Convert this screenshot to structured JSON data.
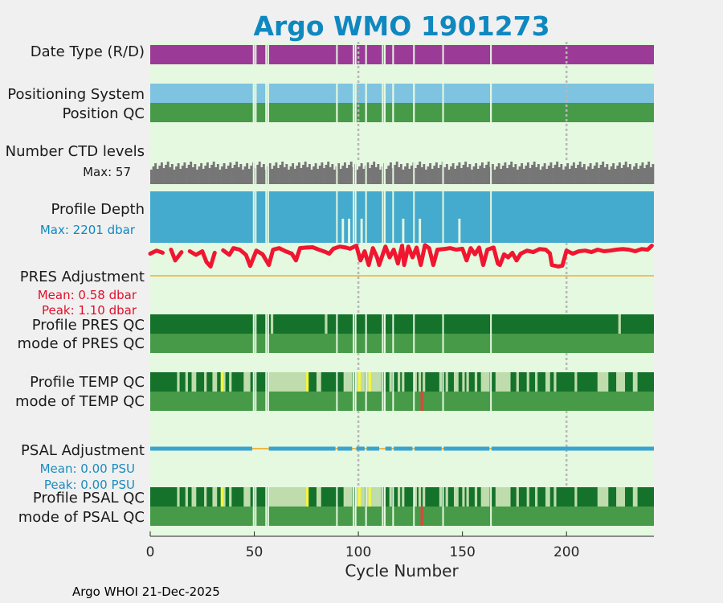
{
  "chart_data": {
    "type": "heatmap",
    "title": "Argo WMO 1901273",
    "xlabel": "Cycle Number",
    "xlim": [
      0,
      242
    ],
    "xticks": [
      0,
      50,
      100,
      150,
      200
    ],
    "footer": "Argo WHOI 21-Dec-2025",
    "rows": {
      "date_type": "Date Type (R/D)",
      "positioning_system": "Positioning System",
      "position_qc": "Position QC",
      "ctd_levels": "Number CTD levels",
      "ctd_levels_max": "Max: 57",
      "profile_depth": "Profile Depth",
      "profile_depth_max": "Max: 2201 dbar",
      "pres_adjustment": "PRES Adjustment",
      "pres_mean": "Mean: 0.58 dbar",
      "pres_peak": "Peak: 1.10 dbar",
      "profile_pres_qc": "Profile PRES QC",
      "mode_pres_qc": "mode of PRES QC",
      "profile_temp_qc": "Profile TEMP QC",
      "mode_temp_qc": "mode of TEMP QC",
      "psal_adjustment": "PSAL Adjustment",
      "psal_mean": "Mean: 0.00 PSU",
      "psal_peak": "Peak: 0.00 PSU",
      "profile_psal_qc": "Profile PSAL QC",
      "mode_psal_qc": "mode of PSAL QC"
    },
    "missing_cycles": [
      49,
      50,
      55,
      56,
      89,
      97,
      98,
      103,
      111,
      112,
      116,
      126,
      140,
      163
    ],
    "temp_light_cycles": [
      13,
      17,
      20,
      21,
      26,
      30,
      31,
      34,
      35,
      38,
      45,
      46,
      47,
      57,
      58,
      59,
      60,
      61,
      62,
      63,
      64,
      65,
      66,
      67,
      68,
      69,
      70,
      71,
      72,
      73,
      74,
      80,
      81,
      93,
      94,
      95,
      96,
      99,
      100,
      101,
      102,
      104,
      105,
      106,
      107,
      108,
      109,
      110,
      115,
      119,
      121,
      127,
      129,
      131,
      139,
      142,
      146,
      147,
      150,
      152,
      156,
      159,
      160,
      161,
      162,
      166,
      167,
      168,
      169,
      170,
      171,
      172,
      176,
      181,
      185,
      190,
      191,
      194,
      204,
      215,
      216,
      217,
      218,
      219,
      224,
      225,
      226,
      227,
      232,
      233
    ],
    "temp_yellow_cycles": [
      34,
      75,
      100,
      105
    ],
    "mode_temp_red_cycles": [
      130
    ],
    "psal_yellow_cycles": [
      34,
      75,
      100,
      105
    ],
    "psal_red_cycles": [
      130
    ],
    "pres_qc_light_cycles": [
      58,
      84,
      225
    ],
    "pres_adjustment_range": [
      0.0,
      1.1
    ],
    "pres_adjustment_samples": [
      {
        "cycle": 0,
        "value": 0.72
      },
      {
        "cycle": 3,
        "value": 0.82
      },
      {
        "cycle": 6,
        "value": 0.75
      },
      {
        "cycle": 10,
        "value": 0.85
      },
      {
        "cycle": 12,
        "value": 0.5
      },
      {
        "cycle": 15,
        "value": 0.77
      },
      {
        "cycle": 19,
        "value": 0.8
      },
      {
        "cycle": 22,
        "value": 0.68
      },
      {
        "cycle": 25,
        "value": 0.8
      },
      {
        "cycle": 27,
        "value": 0.45
      },
      {
        "cycle": 29,
        "value": 0.3
      },
      {
        "cycle": 31,
        "value": 0.75
      },
      {
        "cycle": 35,
        "value": 0.83
      },
      {
        "cycle": 38,
        "value": 0.68
      },
      {
        "cycle": 40,
        "value": 0.9
      },
      {
        "cycle": 43,
        "value": 0.85
      },
      {
        "cycle": 46,
        "value": 0.68
      },
      {
        "cycle": 48,
        "value": 0.32
      },
      {
        "cycle": 51,
        "value": 0.82
      },
      {
        "cycle": 54,
        "value": 0.7
      },
      {
        "cycle": 57,
        "value": 0.35
      },
      {
        "cycle": 59,
        "value": 0.85
      },
      {
        "cycle": 62,
        "value": 0.9
      },
      {
        "cycle": 65,
        "value": 0.8
      },
      {
        "cycle": 68,
        "value": 0.72
      },
      {
        "cycle": 70,
        "value": 0.5
      },
      {
        "cycle": 72,
        "value": 0.9
      },
      {
        "cycle": 75,
        "value": 0.92
      },
      {
        "cycle": 78,
        "value": 0.93
      },
      {
        "cycle": 81,
        "value": 0.85
      },
      {
        "cycle": 84,
        "value": 0.78
      },
      {
        "cycle": 86,
        "value": 0.72
      },
      {
        "cycle": 88,
        "value": 0.88
      },
      {
        "cycle": 91,
        "value": 0.95
      },
      {
        "cycle": 94,
        "value": 0.92
      },
      {
        "cycle": 96,
        "value": 0.88
      },
      {
        "cycle": 99,
        "value": 0.98
      },
      {
        "cycle": 101,
        "value": 0.5
      },
      {
        "cycle": 103,
        "value": 0.8
      },
      {
        "cycle": 105,
        "value": 0.35
      },
      {
        "cycle": 107,
        "value": 0.9
      },
      {
        "cycle": 109,
        "value": 0.6
      },
      {
        "cycle": 110,
        "value": 0.35
      },
      {
        "cycle": 113,
        "value": 0.95
      },
      {
        "cycle": 115,
        "value": 0.6
      },
      {
        "cycle": 117,
        "value": 0.85
      },
      {
        "cycle": 119,
        "value": 0.4
      },
      {
        "cycle": 121,
        "value": 0.98
      },
      {
        "cycle": 122,
        "value": 0.35
      },
      {
        "cycle": 124,
        "value": 0.95
      },
      {
        "cycle": 126,
        "value": 0.6
      },
      {
        "cycle": 128,
        "value": 0.92
      },
      {
        "cycle": 130,
        "value": 0.35
      },
      {
        "cycle": 132,
        "value": 1.0
      },
      {
        "cycle": 134,
        "value": 0.9
      },
      {
        "cycle": 136,
        "value": 0.35
      },
      {
        "cycle": 138,
        "value": 0.85
      },
      {
        "cycle": 141,
        "value": 0.87
      },
      {
        "cycle": 144,
        "value": 0.9
      },
      {
        "cycle": 147,
        "value": 0.85
      },
      {
        "cycle": 150,
        "value": 0.88
      },
      {
        "cycle": 152,
        "value": 0.5
      },
      {
        "cycle": 154,
        "value": 0.9
      },
      {
        "cycle": 156,
        "value": 0.7
      },
      {
        "cycle": 158,
        "value": 0.92
      },
      {
        "cycle": 160,
        "value": 0.35
      },
      {
        "cycle": 162,
        "value": 0.85
      },
      {
        "cycle": 165,
        "value": 0.92
      },
      {
        "cycle": 167,
        "value": 0.4
      },
      {
        "cycle": 168,
        "value": 0.35
      },
      {
        "cycle": 170,
        "value": 0.7
      },
      {
        "cycle": 172,
        "value": 0.6
      },
      {
        "cycle": 174,
        "value": 0.75
      },
      {
        "cycle": 176,
        "value": 0.5
      },
      {
        "cycle": 178,
        "value": 0.72
      },
      {
        "cycle": 181,
        "value": 0.82
      },
      {
        "cycle": 184,
        "value": 0.77
      },
      {
        "cycle": 187,
        "value": 0.87
      },
      {
        "cycle": 190,
        "value": 0.85
      },
      {
        "cycle": 192,
        "value": 0.73
      },
      {
        "cycle": 193,
        "value": 0.35
      },
      {
        "cycle": 196,
        "value": 0.3
      },
      {
        "cycle": 198,
        "value": 0.33
      },
      {
        "cycle": 200,
        "value": 0.82
      },
      {
        "cycle": 203,
        "value": 0.72
      },
      {
        "cycle": 206,
        "value": 0.8
      },
      {
        "cycle": 209,
        "value": 0.82
      },
      {
        "cycle": 212,
        "value": 0.77
      },
      {
        "cycle": 215,
        "value": 0.85
      },
      {
        "cycle": 218,
        "value": 0.8
      },
      {
        "cycle": 221,
        "value": 0.82
      },
      {
        "cycle": 224,
        "value": 0.85
      },
      {
        "cycle": 227,
        "value": 0.87
      },
      {
        "cycle": 230,
        "value": 0.85
      },
      {
        "cycle": 233,
        "value": 0.8
      },
      {
        "cycle": 236,
        "value": 0.87
      },
      {
        "cycle": 239,
        "value": 0.85
      },
      {
        "cycle": 241,
        "value": 0.98
      }
    ],
    "colors": {
      "plot_background": "#e5f8e0",
      "figure_background": "#f0f0f0",
      "date_type": "#9b3b97",
      "positioning_system": "#7ec3e0",
      "qc_good": "#479a48",
      "qc_good_profile": "#14722a",
      "qc_light": "#bedcac",
      "qc_yellow": "#f5f542",
      "qc_red": "#e0443a",
      "ctd_levels": "#767676",
      "profile_depth": "#44aace",
      "pres_adjustment": "#f01630",
      "zero_line": "#f0b84a",
      "psal_adjustment": "#3aa4d0",
      "title": "#0f88c0",
      "mean_peak_pres": "#e0102a",
      "mean_peak_psal": "#1a8cc0"
    }
  }
}
